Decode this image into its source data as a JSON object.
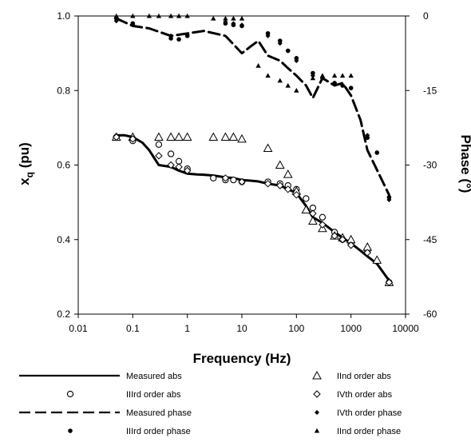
{
  "chart_data": {
    "type": "scatter",
    "title": "",
    "xlabel": "Frequency (Hz)",
    "ylabel": "x",
    "ylabel_subscript": "q",
    "ylabel_unit": " (pu)",
    "y2label": "Phase (°)",
    "xscale": "log",
    "xlim": [
      0.01,
      10000
    ],
    "ylim": [
      0.2,
      1.0
    ],
    "y2lim": [
      -60,
      0
    ],
    "grid": false,
    "legend_position": "bottom",
    "x_tick_labels": [
      "0.01",
      "0.1",
      "1",
      "10",
      "100",
      "1000",
      "10000"
    ],
    "y_tick_labels": [
      "0.2",
      "0.4",
      "0.6",
      "0.8",
      "1.0"
    ],
    "y2_tick_labels": [
      "-60",
      "-45",
      "-30",
      "-15",
      "0"
    ],
    "series": [
      {
        "name": "Measured abs",
        "axis": "left",
        "style": "solid",
        "x": [
          0.05,
          0.07,
          0.1,
          0.15,
          0.2,
          0.3,
          0.5,
          0.7,
          1,
          1.5,
          2,
          3,
          5,
          7,
          10,
          15,
          20,
          30,
          50,
          70,
          100,
          150,
          200,
          300,
          500,
          700,
          1000,
          1500,
          2000,
          3000,
          5000
        ],
        "y": [
          0.68,
          0.68,
          0.675,
          0.66,
          0.64,
          0.6,
          0.595,
          0.585,
          0.577,
          0.575,
          0.574,
          0.572,
          0.567,
          0.565,
          0.56,
          0.558,
          0.556,
          0.55,
          0.545,
          0.535,
          0.525,
          0.49,
          0.46,
          0.445,
          0.42,
          0.405,
          0.39,
          0.37,
          0.355,
          0.335,
          0.29
        ]
      },
      {
        "name": "IIIrd order abs",
        "axis": "left",
        "marker": "open-circle",
        "x": [
          0.05,
          0.1,
          0.3,
          0.5,
          0.7,
          1,
          3,
          5,
          7,
          10,
          30,
          50,
          70,
          100,
          150,
          200,
          300,
          500,
          700,
          1000,
          2000,
          5000
        ],
        "y": [
          0.675,
          0.665,
          0.655,
          0.63,
          0.61,
          0.59,
          0.565,
          0.56,
          0.56,
          0.555,
          0.555,
          0.55,
          0.545,
          0.535,
          0.51,
          0.485,
          0.46,
          0.42,
          0.4,
          0.39,
          0.37,
          0.285
        ]
      },
      {
        "name": "Measured phase",
        "axis": "right",
        "style": "dashed",
        "x": [
          0.05,
          0.1,
          0.2,
          0.5,
          1,
          2,
          5,
          10,
          15,
          20,
          30,
          50,
          70,
          100,
          150,
          200,
          300,
          500,
          700,
          1000,
          1500,
          2000,
          3000,
          5000
        ],
        "y": [
          -0.5,
          -2,
          -2.5,
          -4,
          -3.5,
          -3,
          -4,
          -7.5,
          -6,
          -5,
          -8,
          -9,
          -10.5,
          -12,
          -14,
          -16.5,
          -12.5,
          -14,
          -13.5,
          -16,
          -21,
          -27,
          -31,
          -36
        ]
      },
      {
        "name": "IIIrd order phase",
        "axis": "right",
        "marker": "filled-circle",
        "x": [
          0.05,
          0.1,
          0.5,
          0.7,
          1,
          5,
          7,
          10,
          30,
          50,
          70,
          100,
          200,
          300,
          500,
          700,
          1000,
          2000,
          3000,
          5000
        ],
        "y": [
          -0.5,
          -1.5,
          -4.5,
          -4.7,
          -4,
          -1.5,
          -1.8,
          -2,
          -3.5,
          -5,
          -7,
          -8.5,
          -11.5,
          -12.5,
          -13.5,
          -14,
          -14.5,
          -24.5,
          -27.5,
          -36.5
        ]
      },
      {
        "name": "IInd order abs",
        "axis": "left",
        "marker": "open-triangle",
        "x": [
          0.05,
          0.1,
          0.3,
          0.5,
          0.7,
          1,
          3,
          5,
          7,
          10,
          30,
          50,
          70,
          100,
          150,
          200,
          300,
          500,
          700,
          1000,
          2000,
          3000,
          5000
        ],
        "y": [
          0.675,
          0.675,
          0.675,
          0.675,
          0.675,
          0.675,
          0.675,
          0.675,
          0.675,
          0.67,
          0.645,
          0.6,
          0.575,
          0.53,
          0.48,
          0.45,
          0.43,
          0.41,
          0.405,
          0.4,
          0.38,
          0.345,
          0.285
        ]
      },
      {
        "name": "IVth order abs",
        "axis": "left",
        "marker": "open-diamond",
        "x": [
          0.05,
          0.1,
          0.3,
          0.5,
          0.7,
          1,
          5,
          10,
          30,
          50,
          70,
          100,
          200,
          300,
          500,
          700,
          1000,
          2000,
          5000
        ],
        "y": [
          0.675,
          0.67,
          0.625,
          0.6,
          0.595,
          0.585,
          0.565,
          0.555,
          0.55,
          0.545,
          0.535,
          0.52,
          0.47,
          0.44,
          0.41,
          0.4,
          0.385,
          0.365,
          0.285
        ]
      },
      {
        "name": "IVth order phase",
        "axis": "right",
        "marker": "filled-diamond",
        "x": [
          0.05,
          0.1,
          0.5,
          1,
          5,
          7,
          10,
          30,
          50,
          70,
          100,
          200,
          500,
          1000,
          2000,
          5000
        ],
        "y": [
          -1,
          -1.8,
          -4,
          -3.8,
          -1.2,
          -1.5,
          -1.8,
          -4,
          -5.5,
          -7,
          -9,
          -12,
          -13.5,
          -14.5,
          -24,
          -37
        ]
      },
      {
        "name": "IInd order phase",
        "axis": "right",
        "marker": "filled-triangle",
        "x": [
          0.05,
          0.1,
          0.2,
          0.3,
          0.5,
          0.7,
          1,
          3,
          5,
          7,
          10,
          20,
          30,
          50,
          70,
          100,
          200,
          300,
          500,
          700,
          1000
        ],
        "y": [
          0,
          0,
          0,
          0,
          0,
          0,
          0,
          -0.5,
          -0.5,
          -0.5,
          -0.5,
          -10,
          -12,
          -13,
          -14,
          -15,
          -12.5,
          -12,
          -12,
          -12,
          -12
        ]
      }
    ]
  }
}
